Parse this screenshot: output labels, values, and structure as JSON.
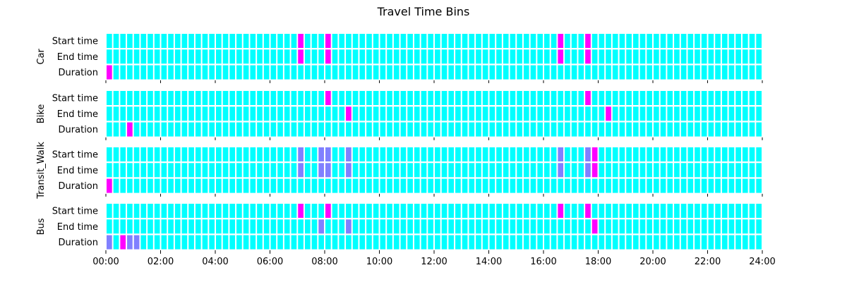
{
  "chart_data": {
    "type": "heatmap",
    "title": "Travel Time Bins",
    "x_range_hours": [
      0,
      24
    ],
    "x_tick_labels": [
      "00:00",
      "02:00",
      "04:00",
      "06:00",
      "08:00",
      "10:00",
      "12:00",
      "14:00",
      "16:00",
      "18:00",
      "20:00",
      "22:00",
      "24:00"
    ],
    "bin_minutes": 15,
    "row_labels": [
      "Start time",
      "End time",
      "Duration"
    ],
    "colors": {
      "0": "#00ffff",
      "1": "#8080ff",
      "2": "#ff00ff"
    },
    "panels": [
      {
        "name": "Car",
        "highlights": {
          "Start time": {
            "28": 2,
            "32": 2,
            "66": 2,
            "70": 2
          },
          "End time": {
            "28": 2,
            "32": 2,
            "66": 2,
            "70": 2
          },
          "Duration": {
            "0": 2
          }
        }
      },
      {
        "name": "Bike",
        "highlights": {
          "Start time": {
            "32": 2,
            "70": 2
          },
          "End time": {
            "35": 2,
            "73": 2
          },
          "Duration": {
            "3": 2
          }
        }
      },
      {
        "name": "Transit_Walk",
        "highlights": {
          "Start time": {
            "28": 1,
            "31": 1,
            "32": 1,
            "35": 1,
            "66": 1,
            "70": 1,
            "71": 2
          },
          "End time": {
            "28": 1,
            "31": 1,
            "32": 1,
            "35": 1,
            "66": 1,
            "70": 1,
            "71": 2
          },
          "Duration": {
            "0": 2
          }
        }
      },
      {
        "name": "Bus",
        "highlights": {
          "Start time": {
            "28": 2,
            "32": 2,
            "66": 2,
            "70": 2
          },
          "End time": {
            "31": 1,
            "35": 1,
            "71": 2
          },
          "Duration": {
            "0": 1,
            "2": 2,
            "3": 1,
            "4": 1
          }
        }
      }
    ]
  }
}
